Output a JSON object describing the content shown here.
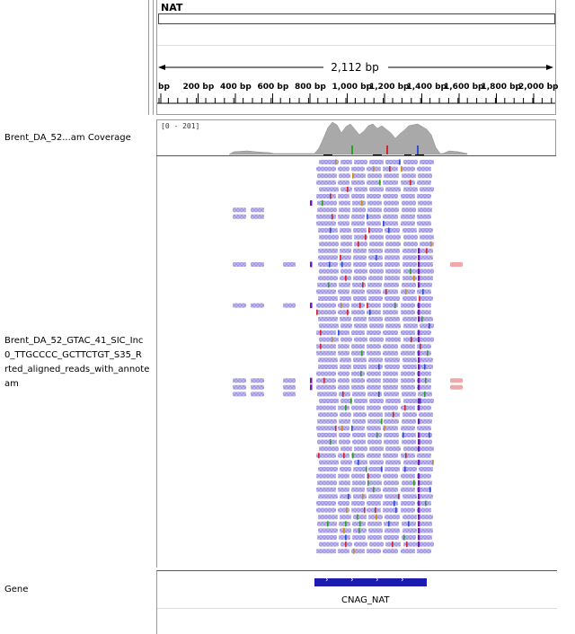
{
  "header": {
    "chrom_name": "NAT",
    "span_label": "2,112 bp",
    "ruler_ticks": [
      "bp",
      "200 bp",
      "400 bp",
      "600 bp",
      "800 bp",
      "1,000 bp",
      "1,200 bp",
      "1,400 bp",
      "1,600 bp",
      "1,800 bp",
      "2,000 bp"
    ]
  },
  "tracks": {
    "coverage": {
      "name": "Brent_DA_52...am Coverage",
      "data_range": "[0 - 201]"
    },
    "alignment": {
      "name_lines": [
        "Brent_DA_52_GTAC_41_SIC_Inc",
        "0_TTGCCCC_GCTTCTGT_S35_R",
        "rted_aligned_reads_with_annote",
        "am"
      ]
    },
    "gene": {
      "name": "Gene",
      "feature_name": "CNAG_NAT"
    }
  },
  "colors": {
    "read_fill": "#bdb5ee",
    "read_pattern": "#8f86d8",
    "mismatch_colors": [
      "#d0252f",
      "#2c9e2c",
      "#2f4fcf",
      "#d08a18"
    ],
    "insertion": "#7a12c9",
    "coverage_fill": "#a9a9a9",
    "mate_pink": "#f0a8a8",
    "gene_blue": "#1b1bb0"
  }
}
